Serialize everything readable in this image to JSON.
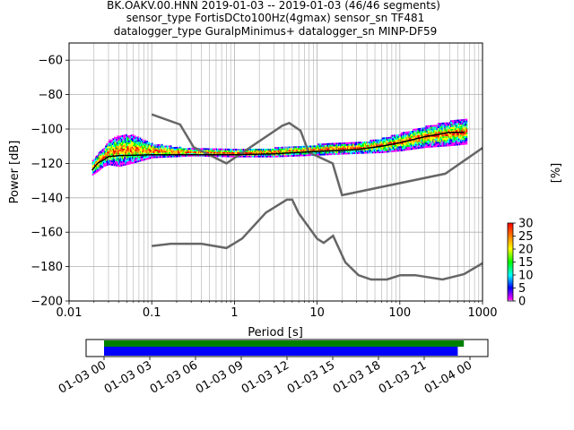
{
  "header": {
    "title_lines": [
      "BK.OAKV.00.HNN   2019-01-03 -- 2019-01-03  (46/46 segments)",
      "sensor_type FortisDCto100Hz(4gmax) sensor_sn TF481",
      "datalogger_type GuralpMinimus+ datalogger_sn MINP-DF59"
    ]
  },
  "chart_data": [
    {
      "type": "heatmap",
      "title": "BK.OAKV.00.HNN   2019-01-03 -- 2019-01-03  (46/46 segments)",
      "xlabel": "Period [s]",
      "ylabel": "Power [dB]",
      "xscale": "log",
      "xlim": [
        0.01,
        1000
      ],
      "ylim": [
        -200,
        -50
      ],
      "grid": true,
      "x_ticks": [
        0.01,
        0.1,
        1,
        10,
        100,
        1000
      ],
      "x_tick_labels": [
        "0.01",
        "0.1",
        "1",
        "10",
        "100",
        "1000"
      ],
      "y_ticks": [
        -200,
        -180,
        -160,
        -140,
        -120,
        -100,
        -80,
        -60
      ],
      "y_tick_labels": [
        "−200",
        "−180",
        "−160",
        "−140",
        "−120",
        "−100",
        "−80",
        "−60"
      ],
      "noise_models": [
        {
          "name": "NHNM",
          "color": "#666666",
          "points": [
            [
              0.1,
              -91.5
            ],
            [
              0.22,
              -97.4
            ],
            [
              0.32,
              -110.5
            ],
            [
              0.8,
              -120
            ],
            [
              3.8,
              -98
            ],
            [
              4.6,
              -96.5
            ],
            [
              6.3,
              -101
            ],
            [
              7.9,
              -113.5
            ],
            [
              15.4,
              -120
            ],
            [
              20,
              -138.5
            ],
            [
              354.8,
              -126
            ],
            [
              1000,
              -111
            ]
          ]
        },
        {
          "name": "NLNM",
          "color": "#666666",
          "points": [
            [
              0.1,
              -168
            ],
            [
              0.17,
              -166.7
            ],
            [
              0.4,
              -166.7
            ],
            [
              0.8,
              -169.2
            ],
            [
              1.24,
              -163.7
            ],
            [
              2.4,
              -148.6
            ],
            [
              4.3,
              -141.1
            ],
            [
              5,
              -141.1
            ],
            [
              6,
              -149
            ],
            [
              10,
              -163.8
            ],
            [
              12,
              -166.2
            ],
            [
              15.6,
              -162.1
            ],
            [
              21.9,
              -177.5
            ],
            [
              31.6,
              -185
            ],
            [
              45,
              -187.5
            ],
            [
              70,
              -187.5
            ],
            [
              101,
              -185
            ],
            [
              154,
              -185
            ],
            [
              328,
              -187.5
            ],
            [
              600,
              -184.4
            ],
            [
              1000,
              -178
            ]
          ]
        }
      ],
      "mean_curve": {
        "color": "#000000",
        "points": [
          [
            0.019,
            -124
          ],
          [
            0.022,
            -120
          ],
          [
            0.026,
            -118
          ],
          [
            0.03,
            -116
          ],
          [
            0.04,
            -115.5
          ],
          [
            0.1,
            -115
          ],
          [
            1,
            -115
          ],
          [
            3,
            -114.5
          ],
          [
            10,
            -113
          ],
          [
            30,
            -112
          ],
          [
            60,
            -110
          ],
          [
            100,
            -108
          ],
          [
            200,
            -104.5
          ],
          [
            400,
            -102
          ],
          [
            600,
            -102
          ]
        ]
      },
      "psd_band": {
        "points": [
          [
            0.019,
            -123,
            4
          ],
          [
            0.022,
            -120,
            5
          ],
          [
            0.026,
            -117,
            5
          ],
          [
            0.03,
            -114,
            7
          ],
          [
            0.04,
            -113,
            9
          ],
          [
            0.06,
            -112,
            8
          ],
          [
            0.1,
            -113,
            4
          ],
          [
            0.3,
            -114,
            2
          ],
          [
            1,
            -114.5,
            2
          ],
          [
            3,
            -114,
            2.5
          ],
          [
            10,
            -112.5,
            3
          ],
          [
            30,
            -111.5,
            3
          ],
          [
            60,
            -110,
            4
          ],
          [
            100,
            -108,
            5
          ],
          [
            200,
            -105,
            6
          ],
          [
            400,
            -103,
            7
          ],
          [
            650,
            -102,
            7
          ]
        ]
      },
      "colorbar": {
        "label": "[%]",
        "min": 0,
        "max": 30,
        "ticks": [
          0,
          5,
          10,
          15,
          20,
          25,
          30
        ],
        "colors": [
          "#ffffff",
          "#ff00ff",
          "#0000ff",
          "#00ffff",
          "#00ff00",
          "#ffff00",
          "#ff8000",
          "#ff0000"
        ]
      }
    },
    {
      "type": "bar",
      "title": "",
      "xlabel": "",
      "ylabel": "",
      "xlim": [
        "01-03 00",
        "01-04 00"
      ],
      "x_tick_labels": [
        "01-03 00",
        "01-03 03",
        "01-03 06",
        "01-03 09",
        "01-03 12",
        "01-03 15",
        "01-03 18",
        "01-03 21",
        "01-04 00"
      ],
      "series": [
        {
          "color": "#008000",
          "values": [
            [
              0,
              23.6
            ]
          ]
        },
        {
          "color": "#0000ff",
          "values": [
            [
              0,
              23.2
            ]
          ]
        }
      ]
    }
  ]
}
